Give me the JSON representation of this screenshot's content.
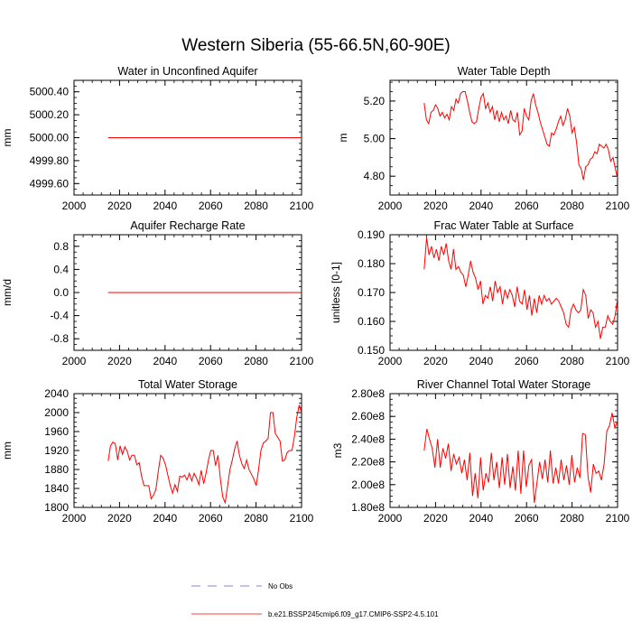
{
  "title": "Western Siberia (55-66.5N,60-90E)",
  "legend": {
    "entries": [
      {
        "label": "No Obs",
        "style": "dashed",
        "color": "#6a5acd"
      },
      {
        "label": "b.e21.BSSP245cmip6.f09_g17.CMIP6-SSP2-4.5.101",
        "style": "solid",
        "color": "#ff0000"
      }
    ]
  },
  "chart_data": [
    {
      "type": "line",
      "title": "Water in Unconfined Aquifer",
      "ylabel": "mm",
      "xlim": [
        2000,
        2100
      ],
      "ylim": [
        4999.5,
        5000.5
      ],
      "xticks": [
        2000,
        2020,
        2040,
        2060,
        2080,
        2100
      ],
      "yticks": [
        4999.6,
        4999.8,
        5000.0,
        5000.2,
        5000.4
      ],
      "ytick_labels": [
        "4999.60",
        "4999.80",
        "5000.00",
        "5000.20",
        "5000.40"
      ],
      "series": [
        {
          "color": "#ff0000",
          "x_start": 2015,
          "x_end": 2100,
          "y": [
            5000,
            5000,
            5000,
            5000,
            5000,
            5000,
            5000,
            5000,
            5000,
            5000,
            5000,
            5000,
            5000,
            5000,
            5000,
            5000,
            5000,
            5000,
            5000,
            5000,
            5000,
            5000,
            5000,
            5000,
            5000,
            5000,
            5000,
            5000,
            5000,
            5000,
            5000,
            5000,
            5000,
            5000,
            5000,
            5000,
            5000,
            5000,
            5000,
            5000,
            5000,
            5000,
            5000,
            5000,
            5000,
            5000,
            5000,
            5000,
            5000,
            5000,
            5000,
            5000,
            5000,
            5000,
            5000,
            5000,
            5000,
            5000,
            5000,
            5000,
            5000,
            5000,
            5000,
            5000,
            5000,
            5000,
            5000,
            5000,
            5000,
            5000,
            5000,
            5000,
            5000,
            5000,
            5000,
            5000,
            5000,
            5000,
            5000,
            5000,
            5000,
            5000,
            5000,
            5000,
            5000,
            5000
          ]
        }
      ]
    },
    {
      "type": "line",
      "title": "Water Table Depth",
      "ylabel": "m",
      "xlim": [
        2000,
        2100
      ],
      "ylim": [
        4.7,
        5.31
      ],
      "xticks": [
        2000,
        2020,
        2040,
        2060,
        2080,
        2100
      ],
      "yticks": [
        4.8,
        5.0,
        5.2
      ],
      "ytick_labels": [
        "4.80",
        "5.00",
        "5.20"
      ],
      "series": [
        {
          "color": "#ff0000",
          "x_start": 2015,
          "x_end": 2100,
          "y": [
            5.19,
            5.1,
            5.08,
            5.14,
            5.15,
            5.18,
            5.16,
            5.12,
            5.14,
            5.11,
            5.13,
            5.1,
            5.17,
            5.15,
            5.21,
            5.19,
            5.24,
            5.25,
            5.25,
            5.2,
            5.14,
            5.09,
            5.08,
            5.09,
            5.16,
            5.22,
            5.24,
            5.16,
            5.19,
            5.14,
            5.17,
            5.1,
            5.15,
            5.09,
            5.14,
            5.1,
            5.12,
            5.08,
            5.15,
            5.1,
            5.09,
            5.14,
            5.02,
            5.04,
            5.16,
            5.12,
            5.1,
            5.2,
            5.24,
            5.18,
            5.14,
            5.09,
            5.05,
            5.01,
            4.97,
            4.96,
            5.03,
            5.02,
            5.05,
            5.09,
            5.12,
            5.07,
            5.1,
            5.16,
            5.12,
            5.03,
            5.06,
            4.98,
            4.86,
            4.84,
            4.78,
            4.85,
            4.86,
            4.89,
            4.9,
            4.93,
            4.92,
            4.97,
            4.96,
            4.95,
            4.97,
            4.94,
            4.88,
            4.9,
            4.84,
            4.79
          ]
        }
      ]
    },
    {
      "type": "line",
      "title": "Aquifer Recharge Rate",
      "ylabel": "mm/d",
      "xlim": [
        2000,
        2100
      ],
      "ylim": [
        -1.0,
        1.0
      ],
      "xticks": [
        2000,
        2020,
        2040,
        2060,
        2080,
        2100
      ],
      "yticks": [
        -0.8,
        -0.4,
        0.0,
        0.4,
        0.8
      ],
      "ytick_labels": [
        "-0.8",
        "-0.4",
        "0.0",
        "0.4",
        "0.8"
      ],
      "series": [
        {
          "color": "#ff0000",
          "x_start": 2015,
          "x_end": 2100,
          "y": [
            0,
            0,
            0,
            0,
            0,
            0,
            0,
            0,
            0,
            0,
            0,
            0,
            0,
            0,
            0,
            0,
            0,
            0,
            0,
            0,
            0,
            0,
            0,
            0,
            0,
            0,
            0,
            0,
            0,
            0,
            0,
            0,
            0,
            0,
            0,
            0,
            0,
            0,
            0,
            0,
            0,
            0,
            0,
            0,
            0,
            0,
            0,
            0,
            0,
            0,
            0,
            0,
            0,
            0,
            0,
            0,
            0,
            0,
            0,
            0,
            0,
            0,
            0,
            0,
            0,
            0,
            0,
            0,
            0,
            0,
            0,
            0,
            0,
            0,
            0,
            0,
            0,
            0,
            0,
            0,
            0,
            0,
            0,
            0,
            0,
            0
          ]
        }
      ]
    },
    {
      "type": "line",
      "title": "Frac Water Table at Surface",
      "ylabel": "unitless [0-1]",
      "xlim": [
        2000,
        2100
      ],
      "ylim": [
        0.15,
        0.19
      ],
      "xticks": [
        2000,
        2020,
        2040,
        2060,
        2080,
        2100
      ],
      "yticks": [
        0.15,
        0.16,
        0.17,
        0.18,
        0.19
      ],
      "ytick_labels": [
        "0.150",
        "0.160",
        "0.170",
        "0.180",
        "0.190"
      ],
      "series": [
        {
          "color": "#ff0000",
          "x_start": 2015,
          "x_end": 2100,
          "y": [
            0.178,
            0.189,
            0.183,
            0.186,
            0.182,
            0.185,
            0.181,
            0.186,
            0.183,
            0.187,
            0.181,
            0.178,
            0.185,
            0.178,
            0.179,
            0.177,
            0.176,
            0.172,
            0.176,
            0.181,
            0.177,
            0.175,
            0.171,
            0.174,
            0.166,
            0.169,
            0.168,
            0.172,
            0.167,
            0.174,
            0.17,
            0.172,
            0.166,
            0.171,
            0.168,
            0.171,
            0.169,
            0.165,
            0.172,
            0.167,
            0.166,
            0.171,
            0.164,
            0.169,
            0.162,
            0.168,
            0.163,
            0.169,
            0.166,
            0.169,
            0.167,
            0.168,
            0.166,
            0.167,
            0.168,
            0.167,
            0.165,
            0.163,
            0.159,
            0.158,
            0.164,
            0.166,
            0.164,
            0.163,
            0.164,
            0.171,
            0.169,
            0.161,
            0.164,
            0.163,
            0.158,
            0.16,
            0.154,
            0.158,
            0.158,
            0.162,
            0.16,
            0.159,
            0.162,
            0.168
          ]
        }
      ]
    },
    {
      "type": "line",
      "title": "Total Water Storage",
      "ylabel": "mm",
      "xlim": [
        2000,
        2100
      ],
      "ylim": [
        1800,
        2040
      ],
      "xticks": [
        2000,
        2020,
        2040,
        2060,
        2080,
        2100
      ],
      "yticks": [
        1800,
        1840,
        1880,
        1920,
        1960,
        2000,
        2040
      ],
      "ytick_labels": [
        "1800",
        "1840",
        "1880",
        "1920",
        "1960",
        "2000",
        "2040"
      ],
      "series": [
        {
          "color": "#ff0000",
          "x_start": 2015,
          "x_end": 2100,
          "y": [
            1898,
            1930,
            1938,
            1934,
            1900,
            1930,
            1912,
            1928,
            1918,
            1900,
            1910,
            1910,
            1890,
            1894,
            1866,
            1846,
            1846,
            1846,
            1818,
            1826,
            1838,
            1876,
            1910,
            1904,
            1890,
            1868,
            1846,
            1830,
            1848,
            1834,
            1866,
            1864,
            1868,
            1858,
            1872,
            1856,
            1872,
            1862,
            1848,
            1878,
            1850,
            1872,
            1900,
            1920,
            1920,
            1888,
            1910,
            1860,
            1822,
            1810,
            1844,
            1880,
            1900,
            1924,
            1940,
            1910,
            1892,
            1882,
            1900,
            1880,
            1870,
            1860,
            1846,
            1880,
            1920,
            1936,
            1940,
            1946,
            2000,
            2000,
            1956,
            1948,
            1940,
            1898,
            1900,
            1916,
            1920,
            1920,
            1950,
            1990,
            2016,
            2000
          ]
        }
      ]
    },
    {
      "type": "line",
      "title": "River Channel Total Water Storage",
      "ylabel": "m3",
      "xlim": [
        2000,
        2100
      ],
      "ylim": [
        180000000.0,
        280000000.0
      ],
      "xticks": [
        2000,
        2020,
        2040,
        2060,
        2080,
        2100
      ],
      "yticks": [
        180000000.0,
        200000000.0,
        220000000.0,
        240000000.0,
        260000000.0,
        280000000.0
      ],
      "ytick_labels": [
        "1.80e8",
        "2.00e8",
        "2.20e8",
        "2.40e8",
        "2.60e8",
        "2.80e8"
      ],
      "series": [
        {
          "color": "#ff0000",
          "x_start": 2015,
          "x_end": 2100,
          "y": [
            230000000.0,
            249000000.0,
            240000000.0,
            232000000.0,
            215000000.0,
            240000000.0,
            215000000.0,
            232000000.0,
            223000000.0,
            236000000.0,
            212000000.0,
            227000000.0,
            218000000.0,
            224000000.0,
            210000000.0,
            222000000.0,
            204000000.0,
            228000000.0,
            190000000.0,
            210000000.0,
            188000000.0,
            224000000.0,
            195000000.0,
            210000000.0,
            202000000.0,
            228000000.0,
            204000000.0,
            220000000.0,
            197000000.0,
            224000000.0,
            200000000.0,
            227000000.0,
            197000000.0,
            216000000.0,
            195000000.0,
            230000000.0,
            192000000.0,
            230000000.0,
            198000000.0,
            217000000.0,
            222000000.0,
            184000000.0,
            202000000.0,
            220000000.0,
            205000000.0,
            222000000.0,
            202000000.0,
            230000000.0,
            201000000.0,
            215000000.0,
            201000000.0,
            222000000.0,
            204000000.0,
            217000000.0,
            200000000.0,
            226000000.0,
            202000000.0,
            215000000.0,
            206000000.0,
            245000000.0,
            244000000.0,
            207000000.0,
            193000000.0,
            218000000.0,
            210000000.0,
            212000000.0,
            204000000.0,
            218000000.0,
            247000000.0,
            252000000.0,
            263000000.0,
            250000000.0,
            256000000.0
          ]
        }
      ]
    }
  ]
}
